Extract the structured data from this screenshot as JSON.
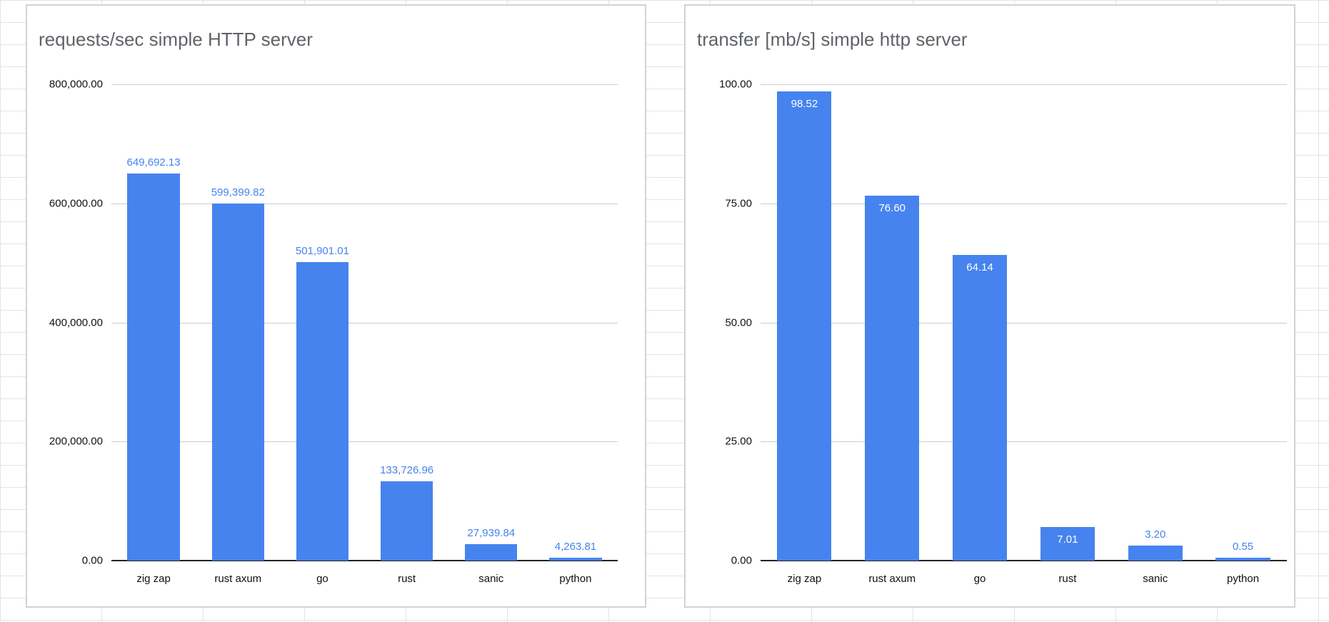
{
  "background": {
    "grid_color": "#e2e4e3"
  },
  "chart_data": [
    {
      "type": "bar",
      "title": "requests/sec simple HTTP server",
      "xlabel": "",
      "ylabel": "",
      "categories": [
        "zig zap",
        "rust axum",
        "go",
        "rust",
        "sanic",
        "python"
      ],
      "values": [
        649692.13,
        599399.82,
        501901.01,
        133726.96,
        27939.84,
        4263.81
      ],
      "labels": [
        "649,692.13",
        "599,399.82",
        "501,901.01",
        "133,726.96",
        "27,939.84",
        "4,263.81"
      ],
      "label_positions": [
        "above",
        "above",
        "above",
        "above",
        "above",
        "above"
      ],
      "ylim": [
        0,
        800000
      ],
      "yticks": [
        0,
        200000,
        400000,
        600000,
        800000
      ],
      "ytick_labels": [
        "0.00",
        "200,000.00",
        "400,000.00",
        "600,000.00",
        "800,000.00"
      ],
      "grid": true,
      "legend": "none",
      "bar_color": "#4683ee",
      "label_color": "#4683ee",
      "inside_label_color": "#ffffff"
    },
    {
      "type": "bar",
      "title": "transfer [mb/s] simple http server",
      "xlabel": "",
      "ylabel": "",
      "categories": [
        "zig zap",
        "rust axum",
        "go",
        "rust",
        "sanic",
        "python"
      ],
      "values": [
        98.52,
        76.6,
        64.14,
        7.01,
        3.2,
        0.55
      ],
      "labels": [
        "98.52",
        "76.60",
        "64.14",
        "7.01",
        "3.20",
        "0.55"
      ],
      "label_positions": [
        "inside",
        "inside",
        "inside",
        "inside",
        "above",
        "above"
      ],
      "ylim": [
        0,
        100
      ],
      "yticks": [
        0,
        25,
        50,
        75,
        100
      ],
      "ytick_labels": [
        "0.00",
        "25.00",
        "50.00",
        "75.00",
        "100.00"
      ],
      "grid": true,
      "legend": "none",
      "bar_color": "#4683ee",
      "label_color": "#4683ee",
      "inside_label_color": "#ffffff"
    }
  ]
}
